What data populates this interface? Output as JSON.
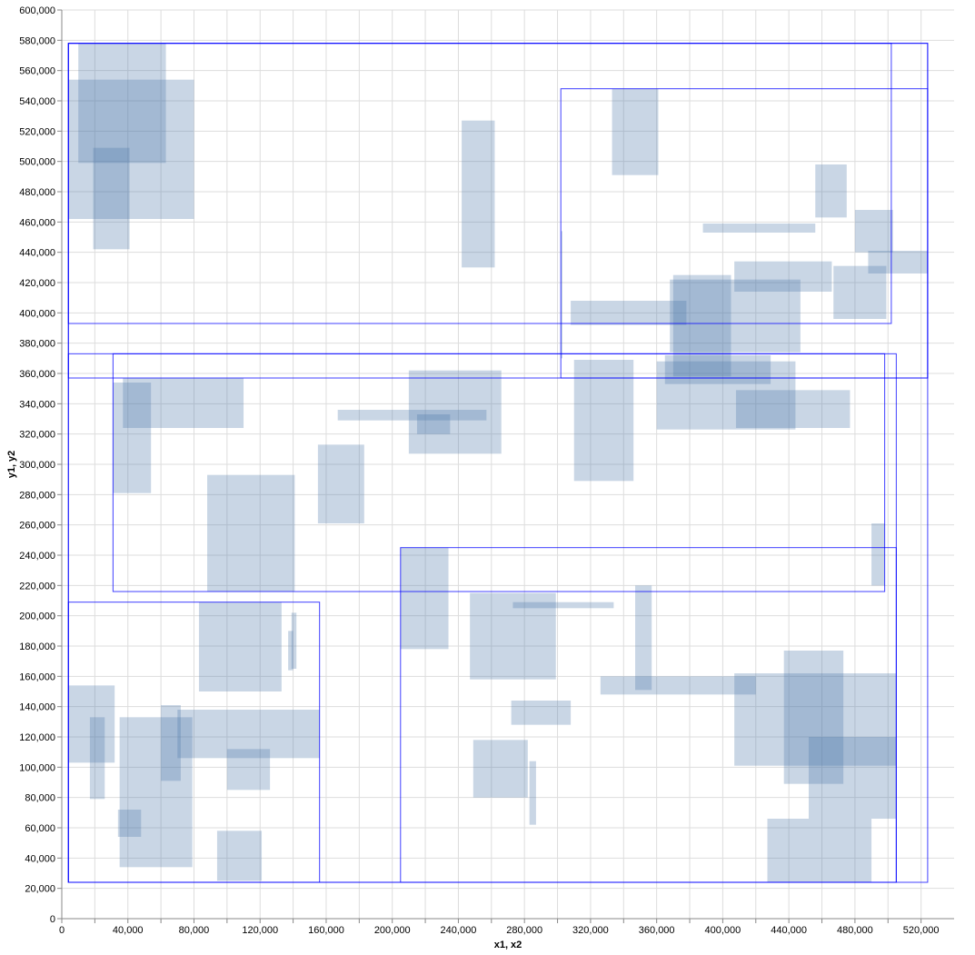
{
  "chart_data": {
    "type": "rect",
    "xlabel": "x1, x2",
    "ylabel": "y1, y2",
    "xlim": [
      0,
      540000
    ],
    "ylim": [
      0,
      600000
    ],
    "x_ticks": [
      0,
      20000,
      40000,
      60000,
      80000,
      100000,
      120000,
      140000,
      160000,
      180000,
      200000,
      220000,
      240000,
      260000,
      280000,
      300000,
      320000,
      340000,
      360000,
      380000,
      400000,
      420000,
      440000,
      460000,
      480000,
      500000,
      520000
    ],
    "x_tick_labels": [
      "0",
      "",
      "40,000",
      "",
      "80,000",
      "",
      "120,000",
      "",
      "160,000",
      "",
      "200,000",
      "",
      "240,000",
      "",
      "280,000",
      "",
      "320,000",
      "",
      "360,000",
      "",
      "400,000",
      "",
      "440,000",
      "",
      "480,000",
      "",
      "520,000"
    ],
    "y_ticks": [
      0,
      20000,
      40000,
      60000,
      80000,
      100000,
      120000,
      140000,
      160000,
      180000,
      200000,
      220000,
      240000,
      260000,
      280000,
      300000,
      320000,
      340000,
      360000,
      380000,
      400000,
      420000,
      440000,
      460000,
      480000,
      500000,
      520000,
      540000,
      560000,
      580000,
      600000
    ],
    "y_tick_labels": [
      "0",
      "20,000",
      "40,000",
      "60,000",
      "80,000",
      "100,000",
      "120,000",
      "140,000",
      "160,000",
      "180,000",
      "200,000",
      "220,000",
      "240,000",
      "260,000",
      "280,000",
      "300,000",
      "320,000",
      "340,000",
      "360,000",
      "380,000",
      "400,000",
      "420,000",
      "440,000",
      "460,000",
      "480,000",
      "500,000",
      "520,000",
      "540,000",
      "560,000",
      "580,000",
      "600,000"
    ],
    "grid": true,
    "fill_color": "#4c78a8",
    "fill_opacity": 0.3,
    "outline_color": "#0000ff",
    "outlines": [
      {
        "x1": 4000,
        "x2": 524000,
        "y1": 24000,
        "y2": 578000
      },
      {
        "x1": 4000,
        "x2": 502000,
        "y1": 393000,
        "y2": 578000
      },
      {
        "x1": 302000,
        "x2": 524000,
        "y1": 357000,
        "y2": 548000
      },
      {
        "x1": 4000,
        "x2": 524000,
        "y1": 357000,
        "y2": 578000
      },
      {
        "x1": 4000,
        "x2": 505000,
        "y1": 24000,
        "y2": 373000
      },
      {
        "x1": 31000,
        "x2": 498000,
        "y1": 216000,
        "y2": 373000
      },
      {
        "x1": 4000,
        "x2": 156000,
        "y1": 24000,
        "y2": 209000
      },
      {
        "x1": 205000,
        "x2": 505000,
        "y1": 24000,
        "y2": 245000
      }
    ],
    "rects": [
      {
        "x1": 10000,
        "x2": 63000,
        "y1": 499000,
        "y2": 578000
      },
      {
        "x1": 4000,
        "x2": 80000,
        "y1": 462000,
        "y2": 554000
      },
      {
        "x1": 19000,
        "x2": 41000,
        "y1": 442000,
        "y2": 509000
      },
      {
        "x1": 242000,
        "x2": 262000,
        "y1": 430000,
        "y2": 527000
      },
      {
        "x1": 333000,
        "x2": 361000,
        "y1": 491000,
        "y2": 548000
      },
      {
        "x1": 456000,
        "x2": 475000,
        "y1": 463000,
        "y2": 498000
      },
      {
        "x1": 480000,
        "x2": 503000,
        "y1": 440000,
        "y2": 468000
      },
      {
        "x1": 488000,
        "x2": 524000,
        "y1": 426000,
        "y2": 441000
      },
      {
        "x1": 388000,
        "x2": 456000,
        "y1": 453000,
        "y2": 459000
      },
      {
        "x1": 407000,
        "x2": 466000,
        "y1": 414000,
        "y2": 434000
      },
      {
        "x1": 467000,
        "x2": 499000,
        "y1": 396000,
        "y2": 431000
      },
      {
        "x1": 370000,
        "x2": 405000,
        "y1": 358000,
        "y2": 425000
      },
      {
        "x1": 368000,
        "x2": 447000,
        "y1": 374000,
        "y2": 422000
      },
      {
        "x1": 308000,
        "x2": 378000,
        "y1": 392000,
        "y2": 408000
      },
      {
        "x1": 302000,
        "x2": 303000,
        "y1": 370000,
        "y2": 454000
      },
      {
        "x1": 365000,
        "x2": 429000,
        "y1": 353000,
        "y2": 372000
      },
      {
        "x1": 360000,
        "x2": 444000,
        "y1": 323000,
        "y2": 368000
      },
      {
        "x1": 408000,
        "x2": 477000,
        "y1": 324000,
        "y2": 349000
      },
      {
        "x1": 310000,
        "x2": 346000,
        "y1": 289000,
        "y2": 369000
      },
      {
        "x1": 210000,
        "x2": 266000,
        "y1": 307000,
        "y2": 362000
      },
      {
        "x1": 167000,
        "x2": 257000,
        "y1": 329000,
        "y2": 336000
      },
      {
        "x1": 215000,
        "x2": 235000,
        "y1": 320000,
        "y2": 333000
      },
      {
        "x1": 155000,
        "x2": 183000,
        "y1": 261000,
        "y2": 313000
      },
      {
        "x1": 31000,
        "x2": 54000,
        "y1": 281000,
        "y2": 354000
      },
      {
        "x1": 37000,
        "x2": 110000,
        "y1": 324000,
        "y2": 357000
      },
      {
        "x1": 88000,
        "x2": 141000,
        "y1": 216000,
        "y2": 293000
      },
      {
        "x1": 490000,
        "x2": 498000,
        "y1": 220000,
        "y2": 261000
      },
      {
        "x1": 205000,
        "x2": 234000,
        "y1": 178000,
        "y2": 245000
      },
      {
        "x1": 247000,
        "x2": 299000,
        "y1": 158000,
        "y2": 215000
      },
      {
        "x1": 273000,
        "x2": 334000,
        "y1": 205000,
        "y2": 209000
      },
      {
        "x1": 347000,
        "x2": 357000,
        "y1": 151000,
        "y2": 220000
      },
      {
        "x1": 326000,
        "x2": 420000,
        "y1": 148000,
        "y2": 160000
      },
      {
        "x1": 272000,
        "x2": 308000,
        "y1": 128000,
        "y2": 144000
      },
      {
        "x1": 249000,
        "x2": 282000,
        "y1": 80000,
        "y2": 118000
      },
      {
        "x1": 283000,
        "x2": 287000,
        "y1": 62000,
        "y2": 104000
      },
      {
        "x1": 83000,
        "x2": 133000,
        "y1": 150000,
        "y2": 209000
      },
      {
        "x1": 137000,
        "x2": 140000,
        "y1": 164000,
        "y2": 190000
      },
      {
        "x1": 139000,
        "x2": 142000,
        "y1": 165000,
        "y2": 202000
      },
      {
        "x1": 4000,
        "x2": 32000,
        "y1": 103000,
        "y2": 154000
      },
      {
        "x1": 17000,
        "x2": 26000,
        "y1": 79000,
        "y2": 133000
      },
      {
        "x1": 35000,
        "x2": 79000,
        "y1": 34000,
        "y2": 133000
      },
      {
        "x1": 60000,
        "x2": 72000,
        "y1": 91000,
        "y2": 141000
      },
      {
        "x1": 70000,
        "x2": 156000,
        "y1": 106000,
        "y2": 138000
      },
      {
        "x1": 100000,
        "x2": 126000,
        "y1": 85000,
        "y2": 112000
      },
      {
        "x1": 34000,
        "x2": 48000,
        "y1": 54000,
        "y2": 72000
      },
      {
        "x1": 94000,
        "x2": 121000,
        "y1": 25000,
        "y2": 58000
      },
      {
        "x1": 407000,
        "x2": 505000,
        "y1": 101000,
        "y2": 162000
      },
      {
        "x1": 437000,
        "x2": 473000,
        "y1": 89000,
        "y2": 177000
      },
      {
        "x1": 452000,
        "x2": 505000,
        "y1": 66000,
        "y2": 120000
      },
      {
        "x1": 427000,
        "x2": 490000,
        "y1": 24000,
        "y2": 66000
      }
    ]
  }
}
